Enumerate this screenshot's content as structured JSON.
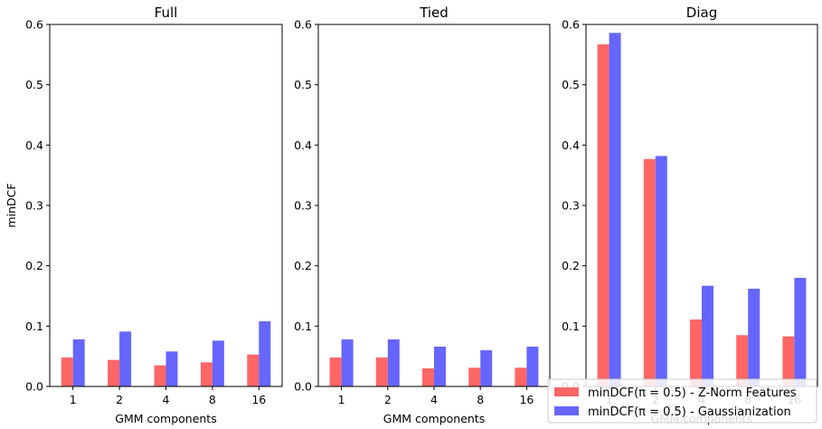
{
  "chart_data": {
    "type": "bar",
    "ylabel": "minDCF",
    "xlabel": "GMM components",
    "categories": [
      "1",
      "2",
      "4",
      "8",
      "16"
    ],
    "ylim": [
      0,
      0.6
    ],
    "yticks": [
      "0.0",
      "0.1",
      "0.2",
      "0.3",
      "0.4",
      "0.5",
      "0.6"
    ],
    "grid": false,
    "legend_position": "bottom-right",
    "colors": {
      "znorm": "#ff6666",
      "gauss": "#6666ff"
    },
    "legend": [
      "minDCF(π = 0.5) - Z-Norm Features",
      "minDCF(π = 0.5) - Gaussianization"
    ],
    "panels": [
      {
        "title": "Full",
        "series": [
          {
            "values": [
              0.048,
              0.044,
              0.035,
              0.04,
              0.053
            ]
          },
          {
            "values": [
              0.078,
              0.091,
              0.058,
              0.076,
              0.108
            ]
          }
        ]
      },
      {
        "title": "Tied",
        "series": [
          {
            "values": [
              0.048,
              0.048,
              0.03,
              0.031,
              0.031
            ]
          },
          {
            "values": [
              0.078,
              0.078,
              0.066,
              0.06,
              0.066
            ]
          }
        ]
      },
      {
        "title": "Diag",
        "series": [
          {
            "values": [
              0.567,
              0.377,
              0.111,
              0.085,
              0.083
            ]
          },
          {
            "values": [
              0.586,
              0.382,
              0.167,
              0.162,
              0.18
            ]
          }
        ]
      }
    ]
  }
}
